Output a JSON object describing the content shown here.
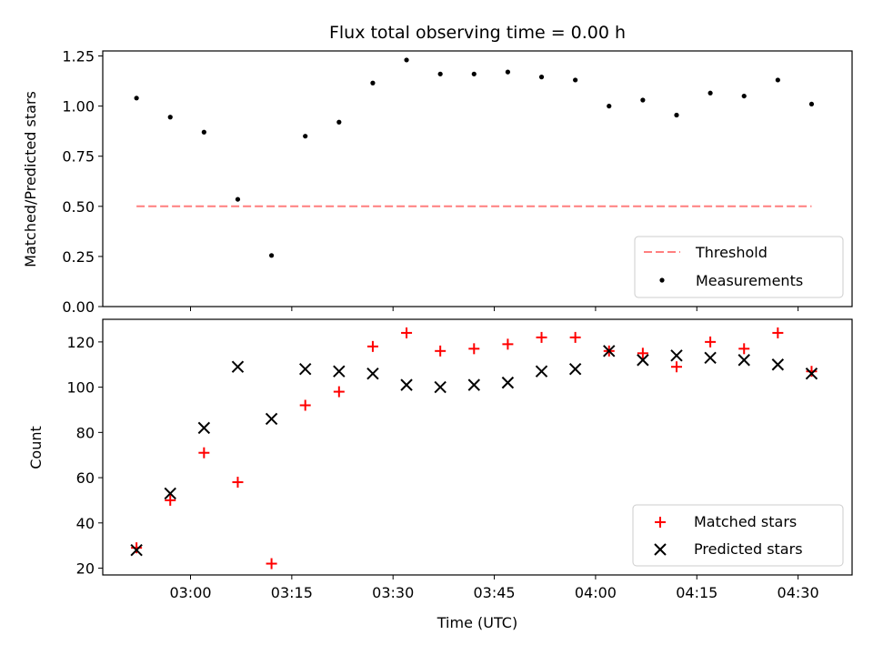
{
  "chart_data": [
    {
      "type": "scatter",
      "title": "Flux total observing time = 0.00 h",
      "xlabel": "",
      "ylabel": "Matched/Predicted stars",
      "ylim": [
        0,
        1.275
      ],
      "yticks": [
        "0.00",
        "0.25",
        "0.50",
        "0.75",
        "1.00",
        "1.25"
      ],
      "ytick_values": [
        0,
        0.25,
        0.5,
        0.75,
        1.0,
        1.25
      ],
      "x": [
        "02:52",
        "02:57",
        "03:02",
        "03:07",
        "03:12",
        "03:17",
        "03:22",
        "03:27",
        "03:32",
        "03:37",
        "03:42",
        "03:47",
        "03:52",
        "03:57",
        "04:02",
        "04:07",
        "04:12",
        "04:17",
        "04:22",
        "04:27",
        "04:32"
      ],
      "series": [
        {
          "name": "Measurements",
          "color": "#000000",
          "marker": "dot",
          "values": [
            1.04,
            0.945,
            0.87,
            0.535,
            0.255,
            0.85,
            0.92,
            1.115,
            1.23,
            1.16,
            1.16,
            1.17,
            1.145,
            1.13,
            1.0,
            1.03,
            0.955,
            1.065,
            1.05,
            1.13,
            1.01
          ]
        },
        {
          "name": "Threshold",
          "color": "#ff7f7f",
          "style": "dashed",
          "values": [
            0.5,
            0.5
          ]
        }
      ],
      "legend": {
        "position": "lower-right",
        "entries": [
          "Threshold",
          "Measurements"
        ]
      },
      "grid": false
    },
    {
      "type": "scatter",
      "title": "",
      "xlabel": "Time (UTC)",
      "ylabel": "Count",
      "ylim": [
        17,
        130
      ],
      "yticks": [
        "20",
        "40",
        "60",
        "80",
        "100",
        "120"
      ],
      "ytick_values": [
        20,
        40,
        60,
        80,
        100,
        120
      ],
      "xlim": [
        "02:47",
        "04:38"
      ],
      "xticks": [
        "03:00",
        "03:15",
        "03:30",
        "03:45",
        "04:00",
        "04:15",
        "04:30"
      ],
      "x": [
        "02:52",
        "02:57",
        "03:02",
        "03:07",
        "03:12",
        "03:17",
        "03:22",
        "03:27",
        "03:32",
        "03:37",
        "03:42",
        "03:47",
        "03:52",
        "03:57",
        "04:02",
        "04:07",
        "04:12",
        "04:17",
        "04:22",
        "04:27",
        "04:32"
      ],
      "series": [
        {
          "name": "Matched stars",
          "color": "#ff0000",
          "marker": "plus",
          "values": [
            29,
            50,
            71,
            58,
            22,
            92,
            98,
            118,
            124,
            116,
            117,
            119,
            122,
            122,
            116,
            115,
            109,
            120,
            117,
            124,
            107
          ]
        },
        {
          "name": "Predicted stars",
          "color": "#000000",
          "marker": "x",
          "values": [
            28,
            53,
            82,
            109,
            86,
            108,
            107,
            106,
            101,
            100,
            101,
            102,
            107,
            108,
            116,
            112,
            114,
            113,
            112,
            110,
            106
          ]
        }
      ],
      "legend": {
        "position": "lower-right",
        "entries": [
          "Matched stars",
          "Predicted stars"
        ]
      },
      "grid": false
    }
  ]
}
